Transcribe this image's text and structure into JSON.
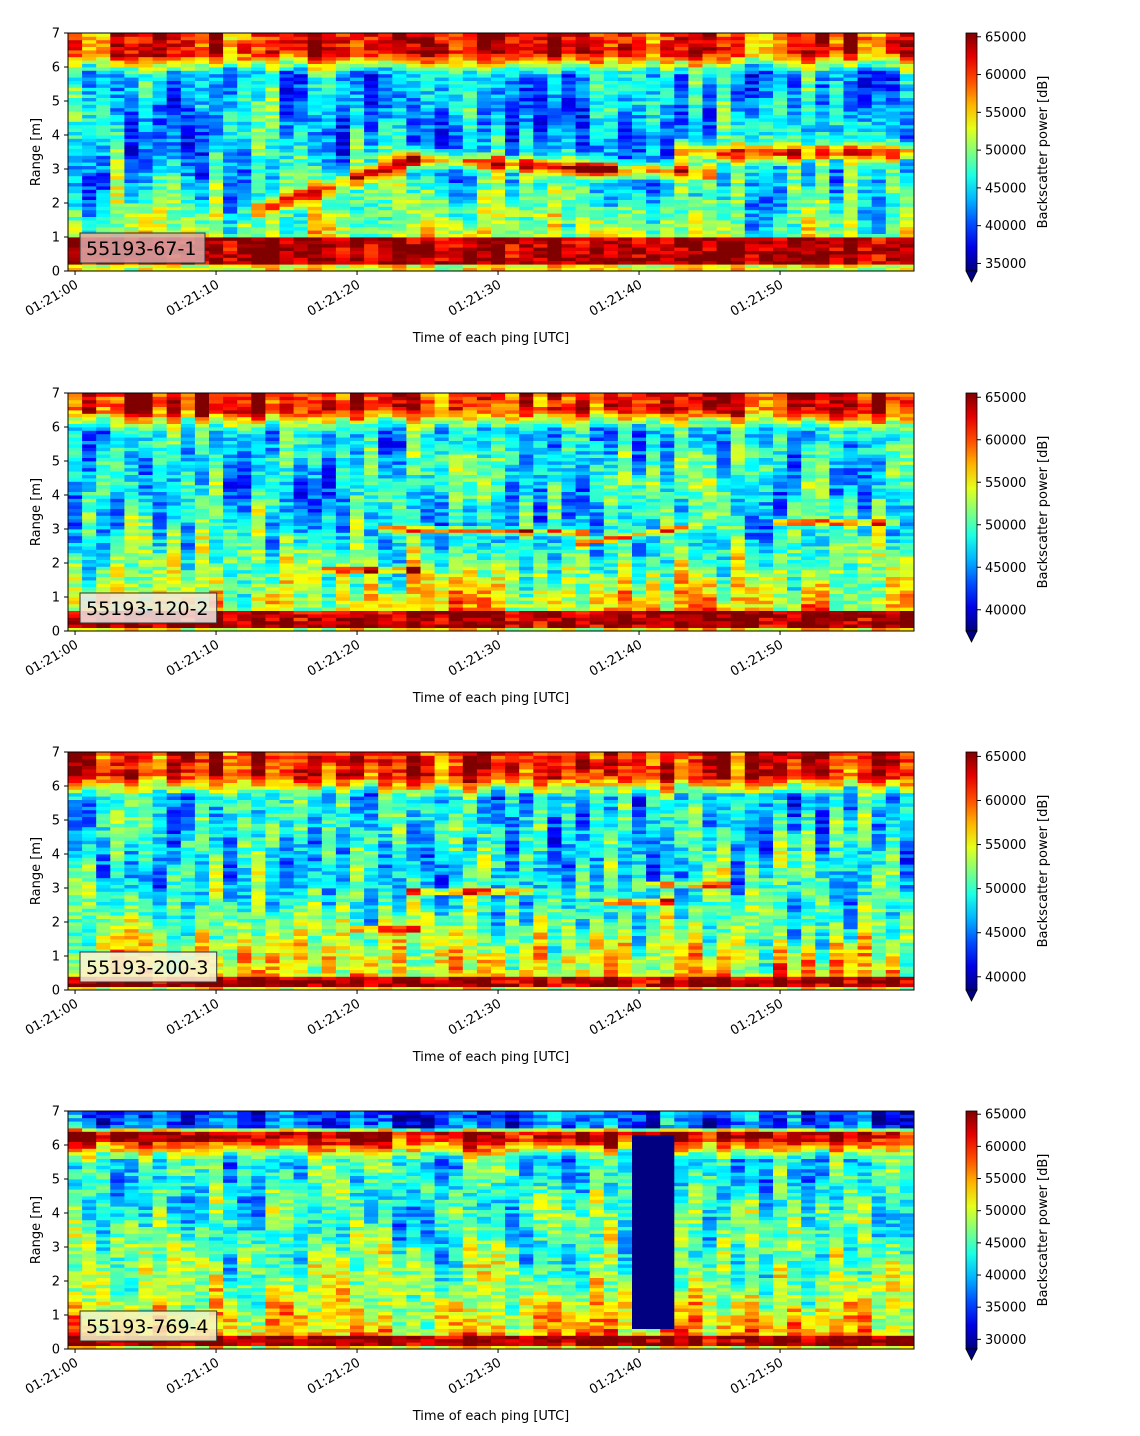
{
  "figure": {
    "background": "#ffffff",
    "colormap": "jet"
  },
  "chart_data": [
    {
      "type": "heatmap",
      "label": "55193-67-1",
      "label_box_color": "#d8a8a8",
      "xlabel": "Time of each ping [UTC]",
      "ylabel": "Range [m]",
      "xticks": [
        "01:21:00",
        "01:21:10",
        "01:21:20",
        "01:21:30",
        "01:21:40",
        "01:21:50"
      ],
      "xlim_seconds": [
        -0.5,
        59.5
      ],
      "ylim": [
        0,
        7
      ],
      "yticks": [
        0,
        1,
        2,
        3,
        4,
        5,
        6,
        7
      ],
      "colorbar": {
        "label": "Backscatter power [dB]",
        "vmin": 34000,
        "vmax": 65500,
        "ticks": [
          35000,
          40000,
          45000,
          50000,
          55000,
          60000,
          65000
        ],
        "tick_labels": [
          "35000",
          "40000",
          "45000",
          "50000",
          "55000",
          "60000",
          "65000"
        ]
      },
      "features": {
        "surface_band": [
          6.3,
          7.0
        ],
        "bottom_band": [
          0.2,
          1.0
        ],
        "scatter_layers": [
          [
            13,
            24,
            1.8,
            3.3
          ],
          [
            24,
            38,
            3.3,
            3.0
          ],
          [
            36,
            45,
            3.0,
            2.9
          ],
          [
            43,
            59,
            3.5,
            3.5
          ]
        ]
      }
    },
    {
      "type": "heatmap",
      "label": "55193-120-2",
      "label_box_color": "#f2e8e4",
      "xlabel": "Time of each ping [UTC]",
      "ylabel": "Range [m]",
      "xticks": [
        "01:21:00",
        "01:21:10",
        "01:21:20",
        "01:21:30",
        "01:21:40",
        "01:21:50"
      ],
      "xlim_seconds": [
        -0.5,
        59.5
      ],
      "ylim": [
        0,
        7
      ],
      "yticks": [
        0,
        1,
        2,
        3,
        4,
        5,
        6,
        7
      ],
      "colorbar": {
        "label": "Backscatter power [dB]",
        "vmin": 37500,
        "vmax": 65500,
        "ticks": [
          40000,
          45000,
          50000,
          55000,
          60000,
          65000
        ],
        "tick_labels": [
          "40000",
          "45000",
          "50000",
          "55000",
          "60000",
          "65000"
        ]
      },
      "features": {
        "surface_band": [
          6.4,
          7.0
        ],
        "bottom_band": [
          0.1,
          0.6
        ],
        "scatter_layers": [
          [
            18,
            24,
            1.8,
            1.8
          ],
          [
            22,
            36,
            3.0,
            2.9
          ],
          [
            36,
            44,
            2.6,
            3.1
          ],
          [
            50,
            58,
            3.2,
            3.2
          ]
        ]
      }
    },
    {
      "type": "heatmap",
      "label": "55193-200-3",
      "label_box_color": "#f8f4dc",
      "xlabel": "Time of each ping [UTC]",
      "ylabel": "Range [m]",
      "xticks": [
        "01:21:00",
        "01:21:10",
        "01:21:20",
        "01:21:30",
        "01:21:40",
        "01:21:50"
      ],
      "xlim_seconds": [
        -0.5,
        59.5
      ],
      "ylim": [
        0,
        7
      ],
      "yticks": [
        0,
        1,
        2,
        3,
        4,
        5,
        6,
        7
      ],
      "colorbar": {
        "label": "Backscatter power [dB]",
        "vmin": 38500,
        "vmax": 65500,
        "ticks": [
          40000,
          45000,
          50000,
          55000,
          60000,
          65000
        ],
        "tick_labels": [
          "40000",
          "45000",
          "50000",
          "55000",
          "60000",
          "65000"
        ]
      },
      "features": {
        "surface_band": [
          6.2,
          7.0
        ],
        "bottom_band": [
          0.1,
          0.4
        ],
        "scatter_layers": [
          [
            20,
            24,
            1.8,
            1.8
          ],
          [
            24,
            32,
            2.9,
            2.9
          ],
          [
            38,
            42,
            2.6,
            2.6
          ],
          [
            41,
            46,
            3.1,
            3.1
          ]
        ]
      }
    },
    {
      "type": "heatmap",
      "label": "55193-769-4",
      "label_box_color": "#f4f4c8",
      "xlabel": "Time of each ping [UTC]",
      "ylabel": "Range [m]",
      "xticks": [
        "01:21:00",
        "01:21:10",
        "01:21:20",
        "01:21:30",
        "01:21:40",
        "01:21:50"
      ],
      "xlim_seconds": [
        -0.5,
        59.5
      ],
      "ylim": [
        0,
        7
      ],
      "yticks": [
        0,
        1,
        2,
        3,
        4,
        5,
        6,
        7
      ],
      "colorbar": {
        "label": "Backscatter power [dB]",
        "vmin": 28500,
        "vmax": 65500,
        "ticks": [
          30000,
          35000,
          40000,
          45000,
          50000,
          55000,
          60000,
          65000
        ],
        "tick_labels": [
          "30000",
          "35000",
          "40000",
          "45000",
          "50000",
          "55000",
          "60000",
          "65000"
        ]
      },
      "features": {
        "surface_band": [
          6.1,
          6.4
        ],
        "bottom_band": [
          0.1,
          0.35
        ],
        "dropout_column": [
          40.5,
          42.5,
          0.6,
          6.3
        ]
      }
    }
  ]
}
